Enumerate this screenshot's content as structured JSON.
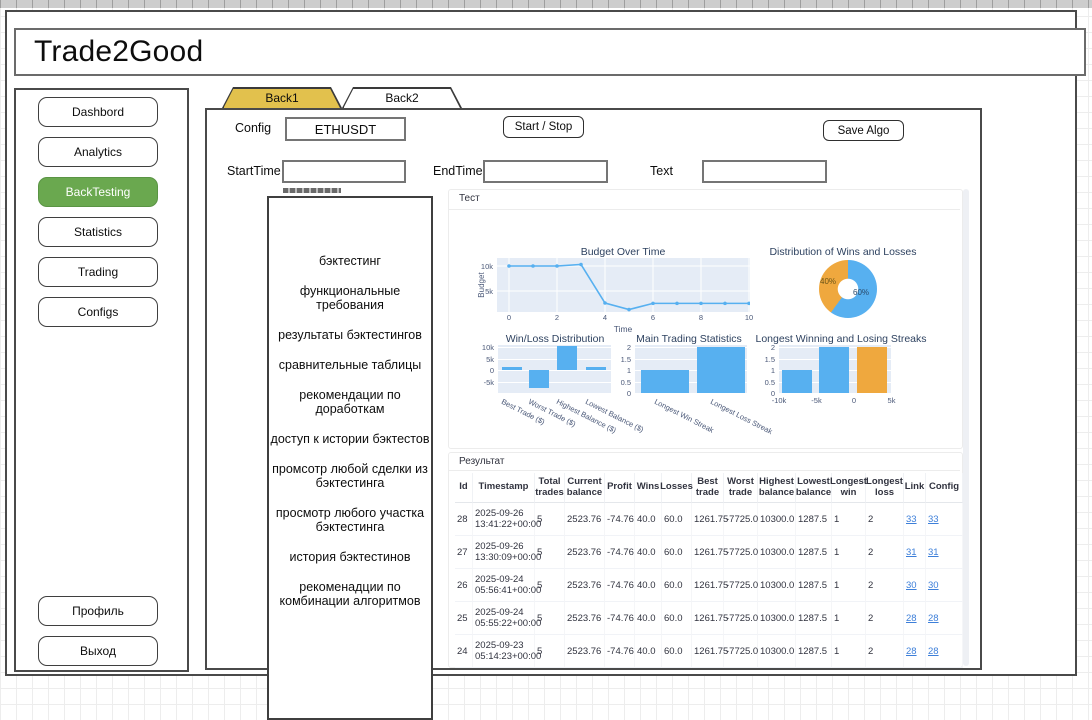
{
  "app": {
    "title": "Trade2Good"
  },
  "sidebar": {
    "items": [
      {
        "label": "Dashbord",
        "active": false
      },
      {
        "label": "Analytics",
        "active": false
      },
      {
        "label": "BackTesting",
        "active": true
      },
      {
        "label": "Statistics",
        "active": false
      },
      {
        "label": "Trading",
        "active": false
      },
      {
        "label": "Configs",
        "active": false
      }
    ],
    "bottom_items": [
      {
        "label": "Профиль"
      },
      {
        "label": "Выход"
      }
    ]
  },
  "tabs": [
    {
      "label": "Back1",
      "active": true
    },
    {
      "label": "Back2",
      "active": false
    }
  ],
  "toolbar": {
    "config_label": "Config",
    "config_value": "ETHUSDT",
    "start_stop_label": "Start / Stop",
    "save_algo_label": "Save Algo",
    "start_time_label": "StartTime",
    "start_time_value": "",
    "end_time_label": "EndTime",
    "end_time_value": "",
    "text_label": "Text",
    "text_value": ""
  },
  "notes": {
    "items": [
      "бэктестинг",
      "функциональные требования",
      "результаты бэктестингов",
      "сравнительные таблицы",
      "рекомендации по доработкам",
      "доступ к истории бэктестов",
      "промсотр любой сделки из бэктестинга",
      "просмотр любого участка бэктестинга",
      "история бэктестинов",
      "рекоменадции по комбинации алгоритмов"
    ]
  },
  "sections": {
    "test_label": "Тест",
    "result_label": "Результат"
  },
  "colors": {
    "accent_green": "#6aa84f",
    "tab_yellow": "#e2c14d",
    "chart_blue": "#57b0f0",
    "chart_orange": "#efa83e",
    "plot_bg": "#e5ecf6",
    "title_color": "#2e4260",
    "link_blue": "#3d7fd9"
  },
  "chart_data": [
    {
      "type": "line",
      "title": "Budget Over Time",
      "xlabel": "Time",
      "ylabel": "Budget",
      "x": [
        0,
        1,
        2,
        3,
        4,
        5,
        6,
        7,
        8,
        9,
        10
      ],
      "y": [
        10000,
        10000,
        10000,
        10300,
        2600,
        1290,
        2525,
        2525,
        2525,
        2525,
        2525
      ],
      "xticks": [
        "0",
        "2",
        "4",
        "6",
        "8",
        "10"
      ],
      "yticks": [
        "10k",
        "5k"
      ],
      "ylim": [
        0,
        11000
      ],
      "grid": true
    },
    {
      "type": "pie",
      "title": "Distribution of Wins and Losses",
      "donut": true,
      "slices": [
        {
          "label": "60%",
          "value": 60,
          "color": "#57b0f0"
        },
        {
          "label": "40%",
          "value": 40,
          "color": "#efa83e"
        }
      ]
    },
    {
      "type": "bar",
      "title": "Win/Loss Distribution",
      "categories": [
        "Best Trade ($)",
        "Worst Trade ($)",
        "Highest Balance ($)",
        "Lowest Balance ($)"
      ],
      "values": [
        1261.75,
        -7725.0,
        10300.0,
        1287.5
      ],
      "yticks": [
        "10k",
        "5k",
        "0",
        "-5k"
      ],
      "ylim": [
        -8500,
        10500
      ]
    },
    {
      "type": "bar",
      "title": "Main Trading Statistics",
      "categories": [
        "Longest Win Streak",
        "Longest Loss Streak"
      ],
      "values": [
        1,
        2
      ],
      "yticks": [
        "2",
        "1.5",
        "1",
        "0.5",
        "0"
      ],
      "ylim": [
        0,
        2
      ]
    },
    {
      "type": "bar",
      "title": "Longest Winning and Losing Streaks",
      "values": [
        1,
        2,
        2
      ],
      "bar_colors": [
        "#57b0f0",
        "#57b0f0",
        "#efa83e"
      ],
      "yticks": [
        "2",
        "1.5",
        "1",
        "0.5",
        "0"
      ],
      "xticks": [
        "-10k",
        "-5k",
        "0",
        "5k"
      ],
      "ylim": [
        0,
        2
      ]
    }
  ],
  "table": {
    "columns": [
      "Id",
      "Timestamp",
      "Total trades",
      "Current balance",
      "Profit",
      "Wins",
      "Losses",
      "Best trade",
      "Worst trade",
      "Highest balance",
      "Lowest balance",
      "Longest win",
      "Longest loss",
      "Link",
      "Config"
    ],
    "rows": [
      [
        "28",
        "2025-09-26 13:41:22+00:00",
        "5",
        "2523.76",
        "-74.76",
        "40.0",
        "60.0",
        "1261.75",
        "-7725.0",
        "10300.0",
        "1287.5",
        "1",
        "2",
        "33",
        "33"
      ],
      [
        "27",
        "2025-09-26 13:30:09+00:00",
        "5",
        "2523.76",
        "-74.76",
        "40.0",
        "60.0",
        "1261.75",
        "-7725.0",
        "10300.0",
        "1287.5",
        "1",
        "2",
        "31",
        "31"
      ],
      [
        "26",
        "2025-09-24 05:56:41+00:00",
        "5",
        "2523.76",
        "-74.76",
        "40.0",
        "60.0",
        "1261.75",
        "-7725.0",
        "10300.0",
        "1287.5",
        "1",
        "2",
        "30",
        "30"
      ],
      [
        "25",
        "2025-09-24 05:55:22+00:00",
        "5",
        "2523.76",
        "-74.76",
        "40.0",
        "60.0",
        "1261.75",
        "-7725.0",
        "10300.0",
        "1287.5",
        "1",
        "2",
        "28",
        "28"
      ],
      [
        "24",
        "2025-09-23 05:14:23+00:00",
        "5",
        "2523.76",
        "-74.76",
        "40.0",
        "60.0",
        "1261.75",
        "-7725.0",
        "10300.0",
        "1287.5",
        "1",
        "2",
        "28",
        "28"
      ]
    ]
  }
}
